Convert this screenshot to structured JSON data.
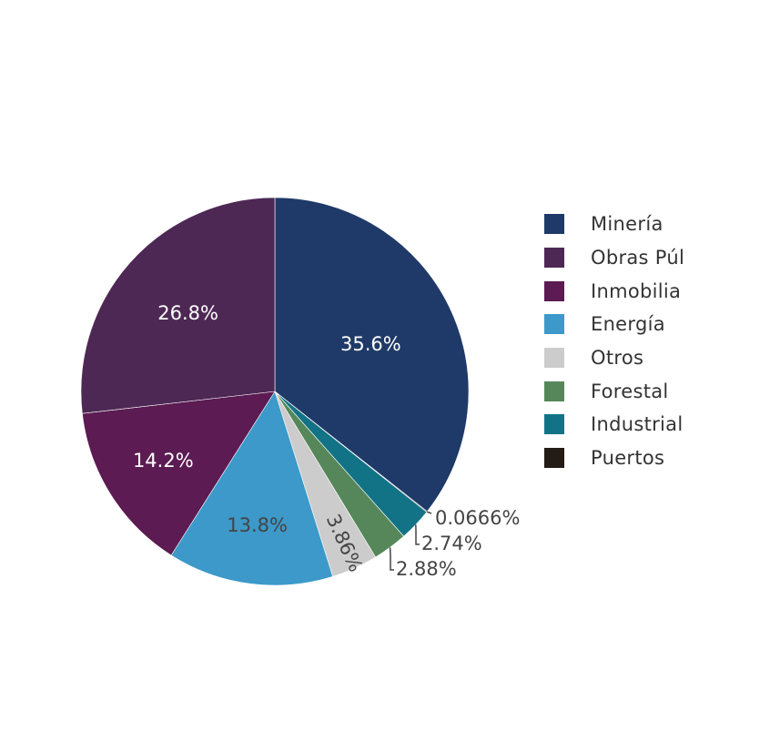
{
  "chart_data": {
    "type": "pie",
    "slices": [
      {
        "label": "Minería",
        "value": 35.6,
        "text": "35.6%",
        "color": "#1f3a68",
        "label_color": "#ffffff"
      },
      {
        "label": "Puertos",
        "value": 0.0666,
        "text": "0.0666%",
        "color": "#231b15",
        "label_color": "#444444"
      },
      {
        "label": "Industrial",
        "value": 2.74,
        "text": "2.74%",
        "color": "#137386",
        "label_color": "#444444"
      },
      {
        "label": "Forestal",
        "value": 2.88,
        "text": "2.88%",
        "color": "#56875a",
        "label_color": "#444444"
      },
      {
        "label": "Otros",
        "value": 3.86,
        "text": "3.86%",
        "color": "#cccccc",
        "label_color": "#444444"
      },
      {
        "label": "Energía",
        "value": 13.8,
        "text": "13.8%",
        "color": "#3c99c9",
        "label_color": "#444444"
      },
      {
        "label": "Inmobilia",
        "value": 14.2,
        "text": "14.2%",
        "color": "#5c1b52",
        "label_color": "#ffffff"
      },
      {
        "label": "Obras Púl",
        "value": 26.8,
        "text": "26.8%",
        "color": "#4e2854",
        "label_color": "#ffffff"
      }
    ],
    "legend_position": "right",
    "direction": "clockwise",
    "start": "top"
  },
  "legend": {
    "items": [
      {
        "label": "Minería",
        "color": "#1f3a68"
      },
      {
        "label": "Obras Púl",
        "color": "#4e2854"
      },
      {
        "label": "Inmobilia",
        "color": "#5c1b52"
      },
      {
        "label": "Energía",
        "color": "#3c99c9"
      },
      {
        "label": "Otros",
        "color": "#cccccc"
      },
      {
        "label": "Forestal",
        "color": "#56875a"
      },
      {
        "label": "Industrial",
        "color": "#137386"
      },
      {
        "label": "Puertos",
        "color": "#231b15"
      }
    ]
  }
}
